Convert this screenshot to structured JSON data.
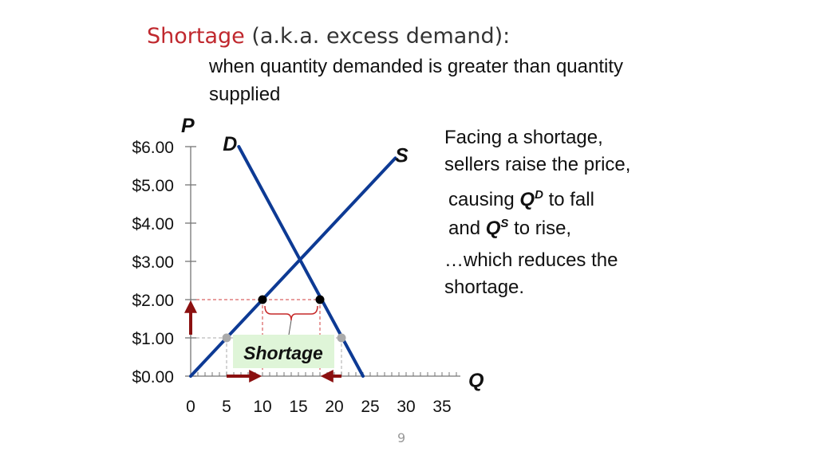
{
  "slide": {
    "title_accent": "Shortage",
    "title_rest": " (a.k.a. excess demand):",
    "subtitle": "when quantity demanded is greater than quantity supplied",
    "page_number": "9"
  },
  "notes": {
    "line1": "Facing a shortage,",
    "line2": "sellers raise the price,",
    "line3_pre": "causing ",
    "line3_sym": "Q",
    "line3_sup": "D",
    "line3_post": " to fall",
    "line4_pre": "and ",
    "line4_sym": "Q",
    "line4_sup": "S",
    "line4_post": " to rise,",
    "line5": "…which reduces the",
    "line6": "shortage."
  },
  "colors": {
    "curve": "#0d3a94",
    "arrow": "#8b1010",
    "shortage_bracket": "#c62828",
    "dashed_high": "#d23c3c",
    "dashed_low": "#aaaaaa",
    "point_high": "#000000",
    "point_low": "#aaaaaa",
    "badge_fill": "#dff5d8"
  },
  "chart_data": {
    "type": "line",
    "xlabel": "Q",
    "ylabel": "P",
    "xlim": [
      0,
      37
    ],
    "ylim": [
      0,
      6
    ],
    "x_ticks": [
      0,
      5,
      10,
      15,
      20,
      25,
      30,
      35
    ],
    "x_tick_labels": [
      "0",
      "5",
      "10",
      "15",
      "20",
      "25",
      "30",
      "35"
    ],
    "y_ticks": [
      0,
      1,
      2,
      3,
      4,
      5,
      6
    ],
    "y_tick_labels": [
      "$0.00",
      "$1.00",
      "$2.00",
      "$3.00",
      "$4.00",
      "$5.00",
      "$6.00"
    ],
    "series": [
      {
        "name": "D",
        "points": [
          [
            6.7,
            6
          ],
          [
            24,
            0
          ]
        ]
      },
      {
        "name": "S",
        "points": [
          [
            0,
            0
          ],
          [
            28.5,
            5.7
          ]
        ]
      }
    ],
    "points": {
      "supply_at_2": [
        10,
        2
      ],
      "demand_at_2": [
        18,
        2
      ],
      "supply_at_1": [
        5,
        1
      ],
      "demand_at_1": [
        21,
        1
      ]
    },
    "annotations": {
      "shortage_label": "Shortage",
      "price_from": 1,
      "price_to": 2,
      "qs_from": 5,
      "qs_to": 10,
      "qd_from": 21,
      "qd_to": 18
    }
  }
}
